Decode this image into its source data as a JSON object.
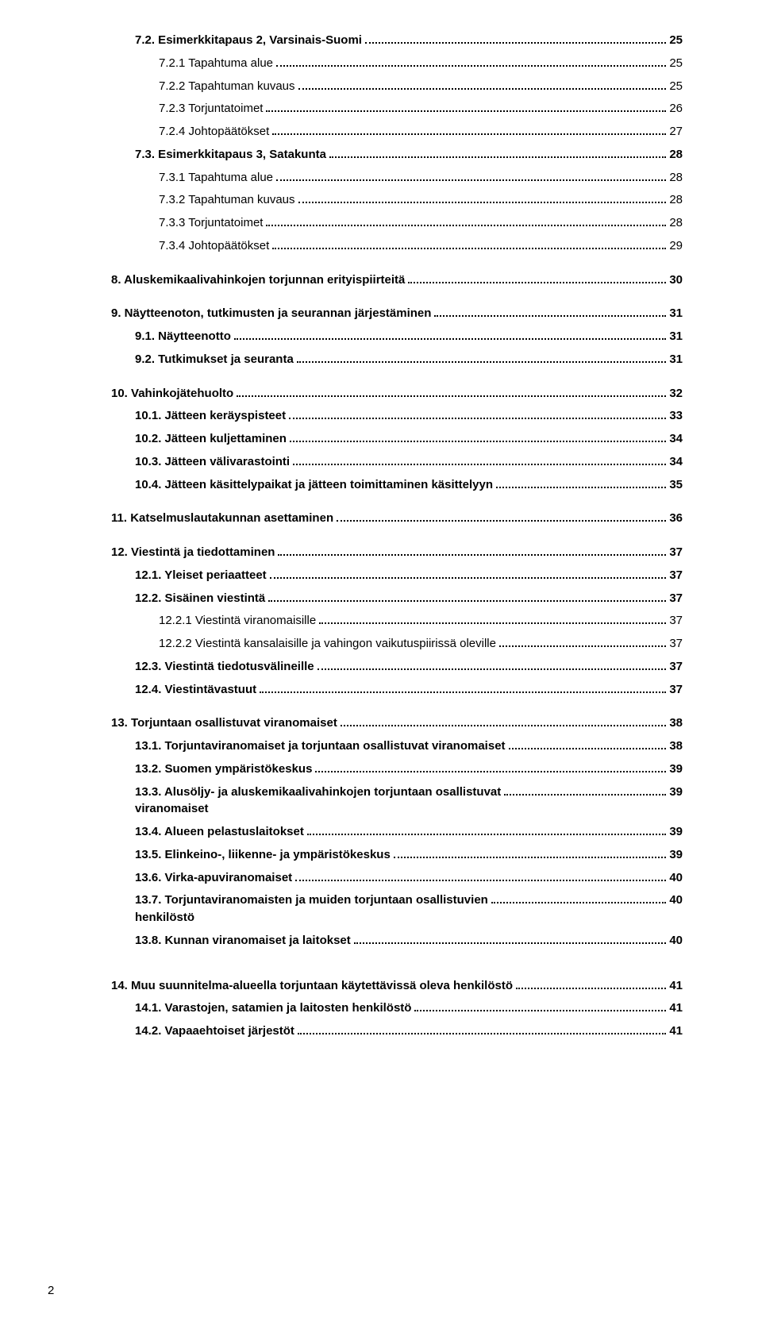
{
  "toc": [
    {
      "label": "7.2. Esimerkkitapaus 2, Varsinais-Suomi",
      "page": "25",
      "level": 1,
      "bold": true,
      "gapBefore": false
    },
    {
      "label": "7.2.1 Tapahtuma alue",
      "page": "25",
      "level": 2,
      "bold": false,
      "gapBefore": false
    },
    {
      "label": "7.2.2 Tapahtuman kuvaus",
      "page": "25",
      "level": 2,
      "bold": false,
      "gapBefore": false
    },
    {
      "label": "7.2.3 Torjuntatoimet",
      "page": "26",
      "level": 2,
      "bold": false,
      "gapBefore": false
    },
    {
      "label": "7.2.4 Johtopäätökset",
      "page": "27",
      "level": 2,
      "bold": false,
      "gapBefore": false
    },
    {
      "label": "7.3. Esimerkkitapaus 3, Satakunta",
      "page": "28",
      "level": 1,
      "bold": true,
      "gapBefore": false
    },
    {
      "label": "7.3.1 Tapahtuma alue",
      "page": "28",
      "level": 2,
      "bold": false,
      "gapBefore": false
    },
    {
      "label": "7.3.2 Tapahtuman kuvaus",
      "page": "28",
      "level": 2,
      "bold": false,
      "gapBefore": false
    },
    {
      "label": "7.3.3 Torjuntatoimet",
      "page": "28",
      "level": 2,
      "bold": false,
      "gapBefore": false
    },
    {
      "label": "7.3.4 Johtopäätökset",
      "page": "29",
      "level": 2,
      "bold": false,
      "gapBefore": false
    },
    {
      "label": "8. Aluskemikaalivahinkojen torjunnan erityispiirteitä",
      "page": "30",
      "level": 0,
      "bold": true,
      "gapBefore": true
    },
    {
      "label": "9. Näytteenoton, tutkimusten ja seurannan järjestäminen",
      "page": "31",
      "level": 0,
      "bold": true,
      "gapBefore": true
    },
    {
      "label": "9.1. Näytteenotto",
      "page": "31",
      "level": 1,
      "bold": true,
      "gapBefore": false
    },
    {
      "label": "9.2. Tutkimukset ja seuranta",
      "page": "31",
      "level": 1,
      "bold": true,
      "gapBefore": false
    },
    {
      "label": "10. Vahinkojätehuolto",
      "page": "32",
      "level": 0,
      "bold": true,
      "gapBefore": true
    },
    {
      "label": "10.1. Jätteen keräyspisteet",
      "page": "33",
      "level": 1,
      "bold": true,
      "gapBefore": false
    },
    {
      "label": "10.2. Jätteen kuljettaminen",
      "page": "34",
      "level": 1,
      "bold": true,
      "gapBefore": false
    },
    {
      "label": "10.3. Jätteen välivarastointi",
      "page": "34",
      "level": 1,
      "bold": true,
      "gapBefore": false
    },
    {
      "label": "10.4. Jätteen käsittelypaikat ja jätteen toimittaminen käsittelyyn",
      "page": "35",
      "level": 1,
      "bold": true,
      "gapBefore": false
    },
    {
      "label": "11. Katselmuslautakunnan asettaminen",
      "page": "36",
      "level": 0,
      "bold": true,
      "gapBefore": true
    },
    {
      "label": "12. Viestintä ja tiedottaminen",
      "page": "37",
      "level": 0,
      "bold": true,
      "gapBefore": true
    },
    {
      "label": "12.1. Yleiset periaatteet",
      "page": "37",
      "level": 1,
      "bold": true,
      "gapBefore": false
    },
    {
      "label": "12.2. Sisäinen viestintä",
      "page": "37",
      "level": 1,
      "bold": true,
      "gapBefore": false
    },
    {
      "label": "12.2.1 Viestintä viranomaisille",
      "page": "37",
      "level": 2,
      "bold": false,
      "gapBefore": false
    },
    {
      "label": "12.2.2 Viestintä kansalaisille ja vahingon vaikutuspiirissä oleville",
      "page": "37",
      "level": 2,
      "bold": false,
      "gapBefore": false
    },
    {
      "label": "12.3. Viestintä tiedotusvälineille",
      "page": "37",
      "level": 1,
      "bold": true,
      "gapBefore": false
    },
    {
      "label": "12.4. Viestintävastuut",
      "page": "37",
      "level": 1,
      "bold": true,
      "gapBefore": false
    },
    {
      "label": "13. Torjuntaan osallistuvat viranomaiset",
      "page": "38",
      "level": 0,
      "bold": true,
      "gapBefore": true
    },
    {
      "label": "13.1. Torjuntaviranomaiset ja torjuntaan osallistuvat viranomaiset",
      "page": "38",
      "level": 1,
      "bold": true,
      "gapBefore": false
    },
    {
      "label": "13.2. Suomen ympäristökeskus",
      "page": "39",
      "level": 1,
      "bold": true,
      "gapBefore": false
    },
    {
      "label": "13.3. Alusöljy- ja aluskemikaalivahinkojen torjuntaan osallistuvat\nviranomaiset",
      "page": "39",
      "level": 1,
      "bold": true,
      "gapBefore": false
    },
    {
      "label": "13.4. Alueen pelastuslaitokset",
      "page": "39",
      "level": 1,
      "bold": true,
      "gapBefore": false
    },
    {
      "label": "13.5. Elinkeino-, liikenne- ja ympäristökeskus",
      "page": "39",
      "level": 1,
      "bold": true,
      "gapBefore": false
    },
    {
      "label": "13.6. Virka-apuviranomaiset",
      "page": "40",
      "level": 1,
      "bold": true,
      "gapBefore": false
    },
    {
      "label": "13.7. Torjuntaviranomaisten ja muiden torjuntaan osallistuvien\nhenkilöstö",
      "page": "40",
      "level": 1,
      "bold": true,
      "gapBefore": false
    },
    {
      "label": "13.8. Kunnan viranomaiset ja laitokset",
      "page": "40",
      "level": 1,
      "bold": true,
      "gapBefore": false
    },
    {
      "label": "14. Muu suunnitelma-alueella torjuntaan käytettävissä oleva henkilöstö",
      "page": "41",
      "level": 0,
      "bold": true,
      "gapBefore": true,
      "extraGap": true
    },
    {
      "label": "14.1. Varastojen, satamien ja laitosten henkilöstö",
      "page": "41",
      "level": 1,
      "bold": true,
      "gapBefore": false
    },
    {
      "label": "14.2. Vapaaehtoiset järjestöt",
      "page": "41",
      "level": 1,
      "bold": true,
      "gapBefore": false
    }
  ],
  "footerPage": "2",
  "colors": {
    "text": "#000000",
    "background": "#ffffff"
  },
  "fontsize_pt": 11
}
